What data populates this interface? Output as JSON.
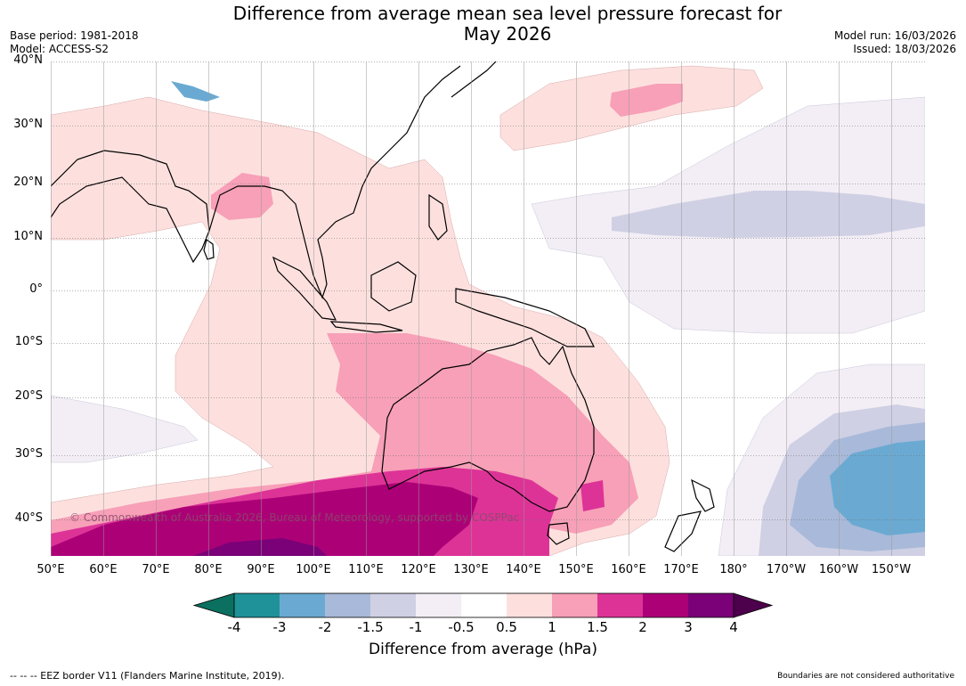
{
  "title": {
    "line1": "Difference from average mean sea level pressure forecast for",
    "line2": "May 2026"
  },
  "meta_left": {
    "base_period": "Base period: 1981-2018",
    "model": "Model: ACCESS-S2"
  },
  "meta_right": {
    "model_run": "Model run: 16/03/2026",
    "issued": "Issued: 18/03/2026"
  },
  "latitude_labels": [
    "40°N",
    "30°N",
    "20°N",
    "10°N",
    "0°",
    "10°S",
    "20°S",
    "30°S",
    "40°S"
  ],
  "longitude_labels": [
    "50°E",
    "60°E",
    "70°E",
    "80°E",
    "90°E",
    "100°E",
    "110°E",
    "120°E",
    "130°E",
    "140°E",
    "150°E",
    "160°E",
    "170°E",
    "180°",
    "170°W",
    "160°W",
    "150°W"
  ],
  "copyright": "© Commonwealth of Australia 2026, Bureau of Meteorology, supported by COSPPac",
  "colorbar": {
    "label": "Difference from average (hPa)",
    "ticks": [
      "-4",
      "-3",
      "-2",
      "-1.5",
      "-1",
      "-0.5",
      "0.5",
      "1",
      "1.5",
      "2",
      "3",
      "4"
    ],
    "colors": {
      "below_min": "#0b7060",
      "c1": "#1f9198",
      "c2": "#6aaad2",
      "c3": "#a9b9d9",
      "c4": "#cfd0e4",
      "c5": "#f3eef5",
      "c6": "#ffffff",
      "c7": "#fde0de",
      "c8": "#f7a0b8",
      "c9": "#dd3397",
      "c10": "#ac0077",
      "c11": "#7a0177",
      "above_max": "#4d004b"
    }
  },
  "footer": {
    "eez_note": "--  --  -- EEZ border V11 (Flanders Marine Institute, 2019).",
    "boundaries_note": "Boundaries are not considered authoritative"
  }
}
